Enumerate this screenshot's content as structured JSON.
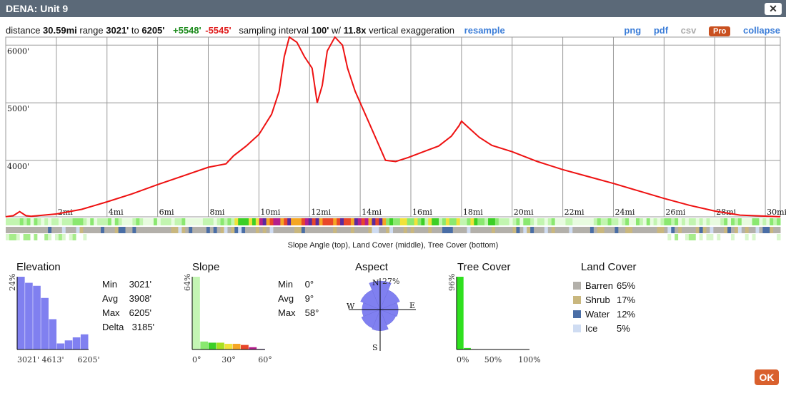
{
  "window": {
    "title": "DENA: Unit 9"
  },
  "summary": {
    "distance_label": "distance",
    "distance": "30.59mi",
    "range_label": "range",
    "range_min": "3021'",
    "range_to": "to",
    "range_max": "6205'",
    "gain": "+5548'",
    "loss": "-5545'",
    "sampling_label": "sampling interval",
    "interval": "100'",
    "with": "w/",
    "exaggeration": "11.8x",
    "exag_label": "vertical exaggeration",
    "resample": "resample"
  },
  "toolbar": {
    "png": "png",
    "pdf": "pdf",
    "csv": "csv",
    "pro": "Pro",
    "collapse": "collapse"
  },
  "profile": {
    "y_labels": [
      "6000'",
      "5000'",
      "4000'"
    ],
    "y_values": [
      6000,
      5000,
      4000
    ],
    "x_labels": [
      "2mi",
      "4mi",
      "6mi",
      "8mi",
      "10mi",
      "12mi",
      "14mi",
      "16mi",
      "18mi",
      "20mi",
      "22mi",
      "24mi",
      "26mi",
      "28mi",
      "30mi"
    ],
    "xlim": [
      0,
      30.59
    ],
    "ylim": [
      3020,
      6140
    ],
    "line_color": "#ee1111",
    "points": [
      [
        0,
        3021
      ],
      [
        0.3,
        3040
      ],
      [
        0.55,
        3110
      ],
      [
        0.8,
        3040
      ],
      [
        1,
        3030
      ],
      [
        2,
        3070
      ],
      [
        3,
        3150
      ],
      [
        4,
        3280
      ],
      [
        5,
        3420
      ],
      [
        6,
        3580
      ],
      [
        7,
        3730
      ],
      [
        8,
        3880
      ],
      [
        8.7,
        3940
      ],
      [
        9,
        4080
      ],
      [
        9.5,
        4250
      ],
      [
        10,
        4450
      ],
      [
        10.5,
        4800
      ],
      [
        10.8,
        5200
      ],
      [
        11,
        5800
      ],
      [
        11.2,
        6140
      ],
      [
        11.5,
        6050
      ],
      [
        11.8,
        5800
      ],
      [
        12.1,
        5600
      ],
      [
        12.3,
        5000
      ],
      [
        12.5,
        5300
      ],
      [
        12.7,
        5900
      ],
      [
        13,
        6140
      ],
      [
        13.3,
        6000
      ],
      [
        13.5,
        5600
      ],
      [
        13.8,
        5200
      ],
      [
        14.2,
        4800
      ],
      [
        14.6,
        4400
      ],
      [
        15,
        4000
      ],
      [
        15.4,
        3980
      ],
      [
        15.9,
        4050
      ],
      [
        16.5,
        4150
      ],
      [
        17.1,
        4250
      ],
      [
        17.6,
        4420
      ],
      [
        17.9,
        4600
      ],
      [
        18,
        4680
      ],
      [
        18.3,
        4560
      ],
      [
        18.7,
        4400
      ],
      [
        19.2,
        4260
      ],
      [
        20,
        4150
      ],
      [
        21,
        3980
      ],
      [
        22,
        3840
      ],
      [
        23,
        3720
      ],
      [
        24,
        3600
      ],
      [
        25,
        3470
      ],
      [
        26,
        3340
      ],
      [
        27,
        3220
      ],
      [
        28,
        3120
      ],
      [
        29,
        3050
      ],
      [
        30.59,
        3021
      ]
    ]
  },
  "bands": {
    "caption": "Slope Angle (top), Land Cover (middle), Tree Cover (bottom)",
    "slope_colors": [
      "#e8fbe0",
      "#c2f5b0",
      "#8ae870",
      "#3ccf26",
      "#f0e23a",
      "#f5a623",
      "#e8462a",
      "#b41e8c",
      "#5a2a9e"
    ],
    "cover_colors": [
      "#b3b0aa",
      "#c9b77e",
      "#4a6ea6",
      "#cfdcf2"
    ],
    "tree_colors": [
      "#ffffff",
      "#d9f7cc",
      "#a6ec8a"
    ]
  },
  "elevation": {
    "title": "Elevation",
    "pct_label": "24%",
    "hist": [
      24,
      22,
      21,
      17,
      10,
      2,
      3,
      4,
      5
    ],
    "x_labels": [
      "3021'",
      "4613'",
      "6205'"
    ],
    "color": "#8080f0",
    "stats": [
      {
        "label": "Min",
        "value": "3021'"
      },
      {
        "label": "Avg",
        "value": "3908'"
      },
      {
        "label": "Max",
        "value": "6205'"
      },
      {
        "label": "Delta",
        "value": "3185'"
      }
    ]
  },
  "slope": {
    "title": "Slope",
    "pct_label": "64%",
    "hist": [
      64,
      7,
      6,
      6,
      5,
      5,
      4,
      2,
      0.5
    ],
    "colors": [
      "#c4f5b4",
      "#8ae870",
      "#3ccf26",
      "#a8e020",
      "#f0e23a",
      "#f5a623",
      "#e8462a",
      "#b41e8c",
      "#5a2a9e"
    ],
    "x_labels": [
      "0°",
      "30°",
      "60°"
    ],
    "stats": [
      {
        "label": "Min",
        "value": "0°"
      },
      {
        "label": "Avg",
        "value": "9°"
      },
      {
        "label": "Max",
        "value": "58°"
      }
    ]
  },
  "aspect": {
    "title": "Aspect",
    "pct_label": "27%",
    "dirs": {
      "n": "N",
      "e": "E",
      "s": "S",
      "w": "W"
    },
    "petals": [
      27,
      20,
      17,
      16,
      20,
      19,
      17,
      20
    ],
    "color": "#8080f0"
  },
  "tree": {
    "title": "Tree Cover",
    "pct_label": "96%",
    "hist": [
      96,
      2,
      0.5,
      0,
      0,
      0,
      0,
      0,
      0,
      0
    ],
    "color": "#2fe01f",
    "x_labels": [
      "0%",
      "50%",
      "100%"
    ]
  },
  "landcover": {
    "title": "Land Cover",
    "items": [
      {
        "name": "Barren",
        "pct": "65%",
        "color": "#b3b0aa"
      },
      {
        "name": "Shrub",
        "pct": "17%",
        "color": "#c9b77e"
      },
      {
        "name": "Water",
        "pct": "12%",
        "color": "#4a6ea6"
      },
      {
        "name": "Ice",
        "pct": "5%",
        "color": "#cfdcf2"
      }
    ]
  },
  "ok": "OK"
}
